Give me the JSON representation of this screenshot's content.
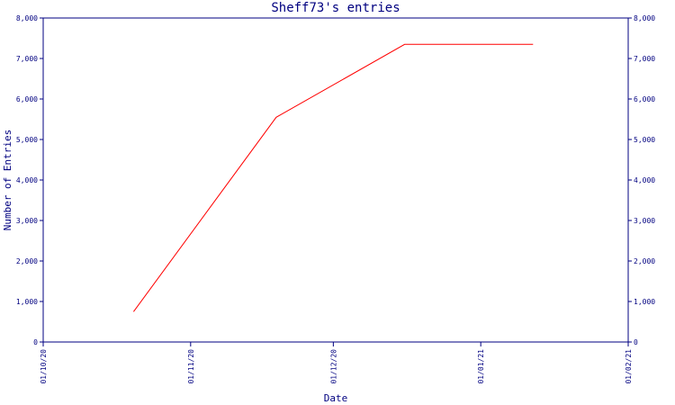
{
  "chart_data": {
    "type": "line",
    "title": "Sheff73's entries",
    "xlabel": "Date",
    "ylabel": "Number of Entries",
    "x_ticks": [
      "01/10/20",
      "01/11/20",
      "01/12/20",
      "01/01/21",
      "01/02/21"
    ],
    "y_ticks": [
      "0",
      "1,000",
      "2,000",
      "3,000",
      "4,000",
      "5,000",
      "6,000",
      "7,000",
      "8,000"
    ],
    "xlim": [
      "2020-10-01",
      "2021-02-01"
    ],
    "ylim": [
      0,
      8000
    ],
    "grid": false,
    "legend": "none",
    "series": [
      {
        "color": "#ff0000",
        "points": [
          {
            "x": "2020-10-20",
            "y": 750
          },
          {
            "x": "2020-11-19",
            "y": 5550
          },
          {
            "x": "2020-12-16",
            "y": 7350
          },
          {
            "x": "2021-01-12",
            "y": 7350
          }
        ]
      }
    ],
    "axis_color": "#000080"
  }
}
